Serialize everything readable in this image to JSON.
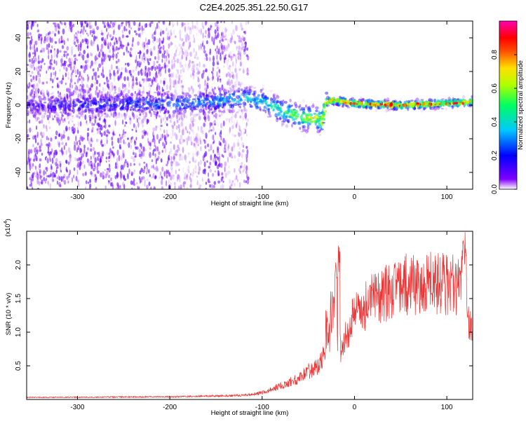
{
  "title": "C2E4.2025.351.22.50.G17",
  "chart_data": [
    {
      "type": "heatmap",
      "name": "spectrogram",
      "xlabel": "Height of straight line (km)",
      "ylabel": "Frequency (Hz)",
      "xlim": [
        -355,
        128
      ],
      "ylim": [
        -50,
        50
      ],
      "x_ticks": [
        -300,
        -200,
        -100,
        0,
        100
      ],
      "x_tick_labels": [
        "-300",
        "-200",
        "-100",
        "0",
        "100"
      ],
      "y_ticks": [
        -40,
        -20,
        0,
        20,
        40
      ],
      "y_tick_labels": [
        "-40",
        "-20",
        "0",
        "20",
        "40"
      ],
      "colorbar": {
        "label": "Normalized spectral amplitude",
        "range": [
          0,
          1
        ],
        "ticks": [
          0.0,
          0.2,
          0.4,
          0.6,
          0.8
        ],
        "tick_labels": [
          "0.0",
          "0.2",
          "0.4",
          "0.6",
          "0.8"
        ],
        "colors": [
          "#ffffff",
          "#8000ff",
          "#0000ff",
          "#00c8ff",
          "#00ff60",
          "#b0ff00",
          "#ffe000",
          "#ff5000",
          "#ff0000",
          "#ff00b0"
        ]
      },
      "trace": {
        "description": "band of energy near 0 Hz, strongest above -30 km",
        "x": [
          -355,
          -300,
          -250,
          -200,
          -150,
          -120,
          -100,
          -80,
          -60,
          -45,
          -35,
          -30,
          -25,
          0,
          50,
          100,
          128
        ],
        "center_hz": [
          0,
          0,
          1,
          1,
          2,
          4,
          2,
          -3,
          -7,
          -8,
          -9,
          2,
          3,
          1,
          0,
          1,
          2
        ],
        "amplitude": [
          0.15,
          0.2,
          0.25,
          0.3,
          0.35,
          0.4,
          0.45,
          0.55,
          0.65,
          0.7,
          0.75,
          0.85,
          0.9,
          0.95,
          0.95,
          0.9,
          0.85
        ]
      }
    },
    {
      "type": "line",
      "name": "snr",
      "xlabel": "Height of straight line (km)",
      "ylabel": "SNR (10 * v/v)",
      "scale_label_base": "(x10",
      "scale_label_exp": "4",
      "scale_label_close": ")",
      "xlim": [
        -355,
        128
      ],
      "ylim": [
        0,
        2.5
      ],
      "x_ticks": [
        -300,
        -200,
        -100,
        0,
        100
      ],
      "x_tick_labels": [
        "-300",
        "-200",
        "-100",
        "0",
        "100"
      ],
      "y_ticks": [
        0.5,
        1.0,
        1.5,
        2.0
      ],
      "y_tick_labels": [
        "0.5",
        "1.0",
        "1.5",
        "2.0"
      ],
      "color": "#ee3333",
      "envelope": {
        "x": [
          -355,
          -200,
          -120,
          -100,
          -80,
          -60,
          -40,
          -30,
          -25,
          -20,
          -18,
          -15,
          -10,
          0,
          20,
          40,
          60,
          80,
          100,
          110,
          115,
          118,
          120,
          124,
          128
        ],
        "y": [
          0.03,
          0.04,
          0.06,
          0.1,
          0.2,
          0.32,
          0.5,
          0.7,
          1.1,
          1.35,
          0.9,
          0.75,
          0.95,
          1.25,
          1.5,
          1.62,
          1.72,
          1.74,
          1.72,
          1.68,
          1.9,
          1.92,
          1.7,
          1.2,
          0.85
        ]
      },
      "spikes": [
        {
          "x": -50,
          "y": 0.55
        },
        {
          "x": -30,
          "y": 1.4
        },
        {
          "x": -25,
          "y": 1.65
        },
        {
          "x": -20,
          "y": 2.15
        },
        {
          "x": -17,
          "y": 2.35
        },
        {
          "x": 2,
          "y": 1.4
        },
        {
          "x": 20,
          "y": 1.7
        },
        {
          "x": 45,
          "y": 1.8
        },
        {
          "x": 80,
          "y": 1.95
        },
        {
          "x": 100,
          "y": 1.95
        },
        {
          "x": 110,
          "y": 2.1
        },
        {
          "x": 118,
          "y": 2.45
        },
        {
          "x": 120,
          "y": 2.5
        }
      ]
    }
  ]
}
